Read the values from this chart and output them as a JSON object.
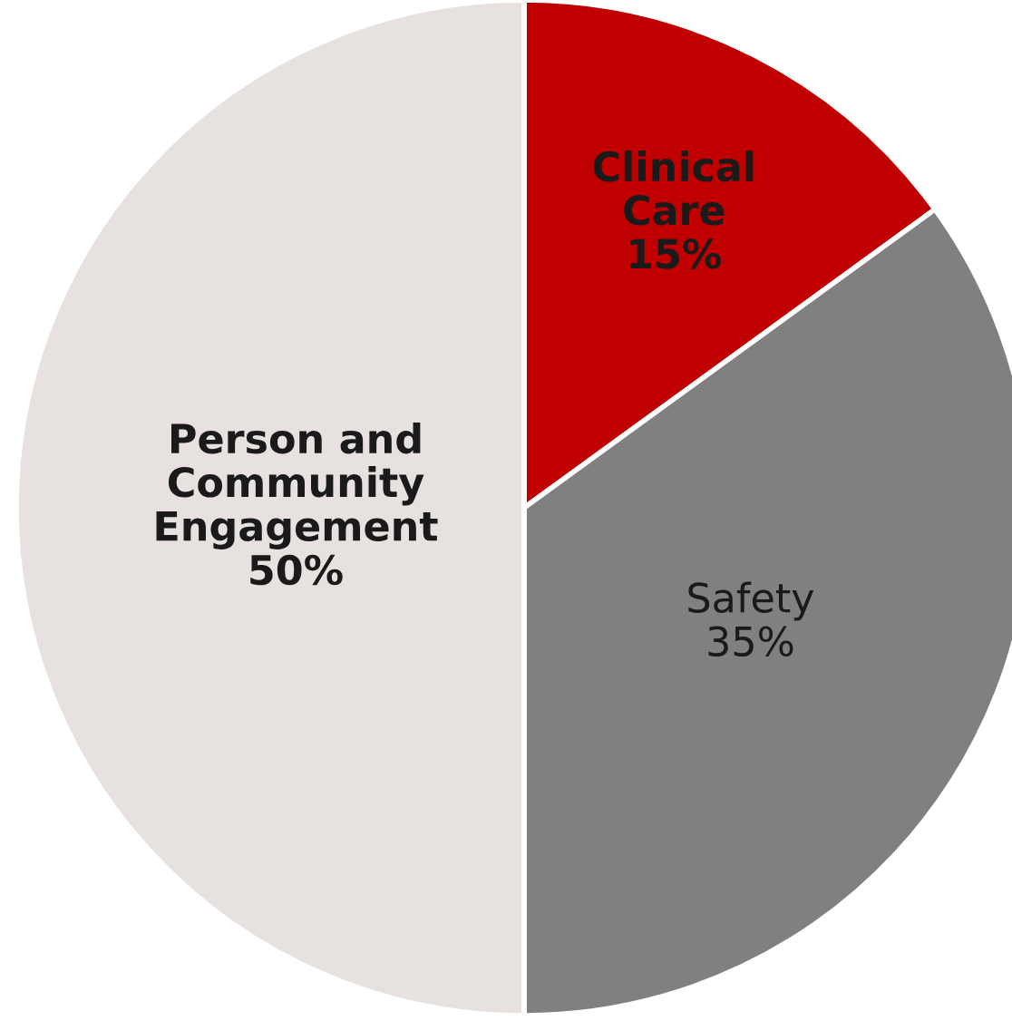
{
  "chart_data": {
    "type": "pie",
    "categories": [
      "Clinical\nCare",
      "Safety",
      "Person and\nCommunity\nEngagement"
    ],
    "values": [
      15,
      35,
      50
    ],
    "colors": [
      "#c00000",
      "#808080",
      "#e7e2e0"
    ],
    "value_labels": [
      "15%",
      "35%",
      "50%"
    ]
  }
}
